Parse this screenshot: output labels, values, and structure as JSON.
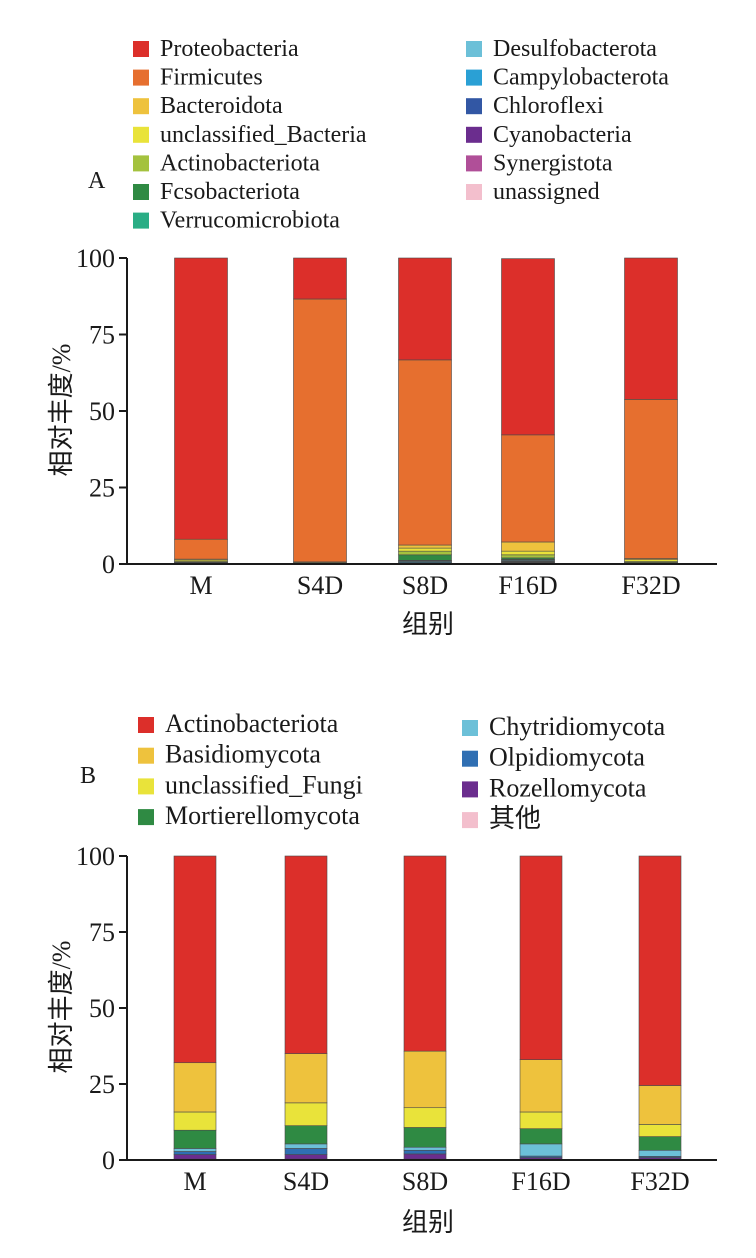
{
  "colors": {
    "Proteobacteria": "#dc2f2a",
    "Firmicutes": "#e66f2f",
    "Bacteroidota": "#eec23d",
    "unclassified_Bacteria": "#e9e33a",
    "Actinobacteriota_A": "#a4c23e",
    "Fcsobacteriota": "#2f8a43",
    "Verrucomicrobiota": "#2aad85",
    "Desulfobacterota": "#6cc0d8",
    "Campylobacterota": "#2aa0d5",
    "Chloroflexi": "#3257a4",
    "Cyanobacteria": "#6b2d8e",
    "Synergistota": "#b04f98",
    "unassigned": "#f3bfcd",
    "Actinobacteriota_B": "#dc2f2a",
    "Basidiomycota": "#eec23d",
    "unclassified_Fungi": "#e9e33a",
    "Mortierellomycota": "#2f8a43",
    "Chytridiomycota": "#6cc0d8",
    "Olpidiomycota": "#2f6fb3",
    "Rozellomycota": "#6b2d8e",
    "other": "#f3bfcd"
  },
  "chart_data": [
    {
      "type": "bar",
      "stacked": true,
      "panel_label": "A",
      "xlabel": "组别",
      "ylabel": "相对丰度/%",
      "ylim": [
        0,
        100
      ],
      "yticks": [
        "0",
        "25",
        "50",
        "75",
        "100"
      ],
      "legend_position": "top",
      "categories": [
        "M",
        "S4D",
        "S8D",
        "F16D",
        "F32D"
      ],
      "series": [
        {
          "name": "unassigned",
          "color_key": "unassigned",
          "values": [
            0.1,
            0.1,
            0.1,
            0.2,
            0.1
          ]
        },
        {
          "name": "Synergistota",
          "color_key": "Synergistota",
          "values": [
            0.1,
            0.0,
            0.1,
            0.2,
            0.0
          ]
        },
        {
          "name": "Cyanobacteria",
          "color_key": "Cyanobacteria",
          "values": [
            0.0,
            0.0,
            0.1,
            0.2,
            0.0
          ]
        },
        {
          "name": "Chloroflexi",
          "color_key": "Chloroflexi",
          "values": [
            0.0,
            0.0,
            0.1,
            0.2,
            0.0
          ]
        },
        {
          "name": "Campylobacterota",
          "color_key": "Campylobacterota",
          "values": [
            0.1,
            0.0,
            0.3,
            0.2,
            0.1
          ]
        },
        {
          "name": "Desulfobacterota",
          "color_key": "Desulfobacterota",
          "values": [
            0.1,
            0.0,
            0.3,
            0.3,
            0.1
          ]
        },
        {
          "name": "Verrucomicrobiota",
          "color_key": "Verrucomicrobiota",
          "values": [
            0.1,
            0.0,
            0.2,
            0.2,
            0.1
          ]
        },
        {
          "name": "Fcsobacteriota",
          "color_key": "Fcsobacteriota",
          "values": [
            0.1,
            0.0,
            1.8,
            0.5,
            0.1
          ]
        },
        {
          "name": "Actinobacteriota",
          "color_key": "Actinobacteriota_A",
          "values": [
            0.2,
            0.1,
            1.2,
            1.0,
            0.3
          ]
        },
        {
          "name": "unclassified_Bacteria",
          "color_key": "unclassified_Bacteria",
          "values": [
            0.5,
            0.3,
            1.0,
            1.2,
            0.6
          ]
        },
        {
          "name": "Bacteroidota",
          "color_key": "Bacteroidota",
          "values": [
            0.3,
            0.2,
            1.0,
            3.0,
            0.4
          ]
        },
        {
          "name": "Firmicutes",
          "color_key": "Firmicutes",
          "values": [
            6.5,
            85.9,
            60.5,
            35.0,
            52.0
          ]
        },
        {
          "name": "Proteobacteria",
          "color_key": "Proteobacteria",
          "values": [
            91.9,
            13.4,
            33.3,
            57.6,
            46.2
          ]
        }
      ],
      "legend": [
        {
          "name": "Proteobacteria",
          "color_key": "Proteobacteria"
        },
        {
          "name": "Firmicutes",
          "color_key": "Firmicutes"
        },
        {
          "name": "Bacteroidota",
          "color_key": "Bacteroidota"
        },
        {
          "name": "unclassified_Bacteria",
          "color_key": "unclassified_Bacteria"
        },
        {
          "name": "Actinobacteriota",
          "color_key": "Actinobacteriota_A"
        },
        {
          "name": "Fcsobacteriota",
          "color_key": "Fcsobacteriota"
        },
        {
          "name": "Verrucomicrobiota",
          "color_key": "Verrucomicrobiota"
        },
        {
          "name": "Desulfobacterota",
          "color_key": "Desulfobacterota"
        },
        {
          "name": "Campylobacterota",
          "color_key": "Campylobacterota"
        },
        {
          "name": "Chloroflexi",
          "color_key": "Chloroflexi"
        },
        {
          "name": "Cyanobacteria",
          "color_key": "Cyanobacteria"
        },
        {
          "name": "Synergistota",
          "color_key": "Synergistota"
        },
        {
          "name": "unassigned",
          "color_key": "unassigned"
        }
      ]
    },
    {
      "type": "bar",
      "stacked": true,
      "panel_label": "B",
      "xlabel": "组别",
      "ylabel": "相对丰度/%",
      "ylim": [
        0,
        100
      ],
      "yticks": [
        "0",
        "25",
        "50",
        "75",
        "100"
      ],
      "legend_position": "top",
      "categories": [
        "M",
        "S4D",
        "S8D",
        "F16D",
        "F32D"
      ],
      "series": [
        {
          "name": "其他",
          "color_key": "other",
          "values": [
            0.3,
            0.3,
            0.3,
            0.3,
            0.3
          ]
        },
        {
          "name": "Rozellomycota",
          "color_key": "Rozellomycota",
          "values": [
            1.5,
            1.5,
            1.7,
            0.5,
            0.5
          ]
        },
        {
          "name": "Olpidiomycota",
          "color_key": "Olpidiomycota",
          "values": [
            1.0,
            2.0,
            1.2,
            0.5,
            0.4
          ]
        },
        {
          "name": "Chytridiomycota",
          "color_key": "Chytridiomycota",
          "values": [
            1.0,
            1.5,
            1.0,
            4.0,
            2.0
          ]
        },
        {
          "name": "Mortierellomycota",
          "color_key": "Mortierellomycota",
          "values": [
            6.0,
            6.0,
            6.5,
            5.0,
            4.5
          ]
        },
        {
          "name": "unclassified_Fungi",
          "color_key": "unclassified_Fungi",
          "values": [
            6.0,
            7.5,
            6.5,
            5.5,
            4.0
          ]
        },
        {
          "name": "Basidiomycota",
          "color_key": "Basidiomycota",
          "values": [
            16.2,
            16.2,
            18.6,
            17.2,
            12.8
          ]
        },
        {
          "name": "Actinobacteriota",
          "color_key": "Actinobacteriota_B",
          "values": [
            68.0,
            65.0,
            64.2,
            67.0,
            75.5
          ]
        }
      ],
      "legend": [
        {
          "name": "Actinobacteriota",
          "color_key": "Actinobacteriota_B"
        },
        {
          "name": "Basidiomycota",
          "color_key": "Basidiomycota"
        },
        {
          "name": "unclassified_Fungi",
          "color_key": "unclassified_Fungi"
        },
        {
          "name": "Mortierellomycota",
          "color_key": "Mortierellomycota"
        },
        {
          "name": "Chytridiomycota",
          "color_key": "Chytridiomycota"
        },
        {
          "name": "Olpidiomycota",
          "color_key": "Olpidiomycota"
        },
        {
          "name": "Rozellomycota",
          "color_key": "Rozellomycota"
        },
        {
          "name": "其他",
          "color_key": "other"
        }
      ]
    }
  ]
}
